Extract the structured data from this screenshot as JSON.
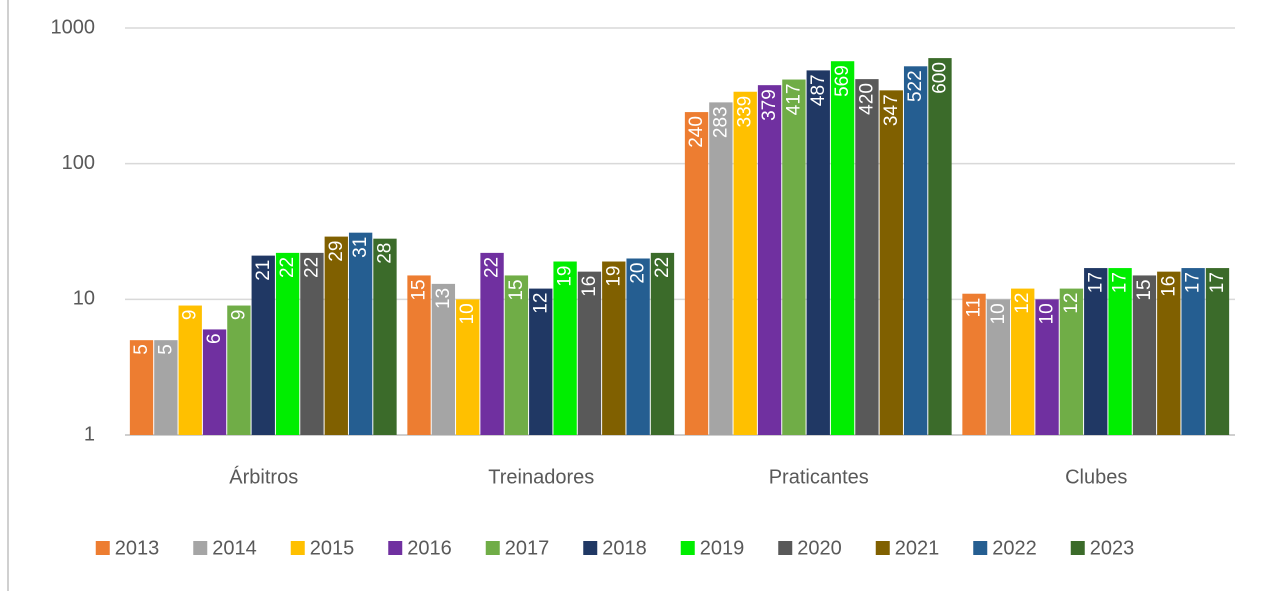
{
  "chart_data": {
    "type": "bar",
    "categories": [
      "Árbitros",
      "Treinadores",
      "Praticantes",
      "Clubes"
    ],
    "series": [
      {
        "name": "2013",
        "color": "#ed7d31",
        "values": [
          5,
          15,
          240,
          11
        ]
      },
      {
        "name": "2014",
        "color": "#a5a5a5",
        "values": [
          5,
          13,
          283,
          10
        ]
      },
      {
        "name": "2015",
        "color": "#ffc000",
        "values": [
          9,
          10,
          339,
          12
        ]
      },
      {
        "name": "2016",
        "color": "#7030a0",
        "values": [
          6,
          22,
          379,
          10
        ]
      },
      {
        "name": "2017",
        "color": "#70ad47",
        "values": [
          9,
          15,
          417,
          12
        ]
      },
      {
        "name": "2018",
        "color": "#203864",
        "values": [
          21,
          12,
          487,
          17
        ]
      },
      {
        "name": "2019",
        "color": "#00ee00",
        "values": [
          22,
          19,
          569,
          17
        ]
      },
      {
        "name": "2020",
        "color": "#595959",
        "values": [
          22,
          16,
          420,
          15
        ]
      },
      {
        "name": "2021",
        "color": "#806000",
        "values": [
          29,
          19,
          347,
          16
        ]
      },
      {
        "name": "2022",
        "color": "#255e91",
        "values": [
          31,
          20,
          522,
          17
        ]
      },
      {
        "name": "2023",
        "color": "#3b6b2a",
        "values": [
          28,
          22,
          600,
          17
        ]
      }
    ],
    "ylim": [
      1,
      1000
    ],
    "yticks": [
      1,
      10,
      100,
      1000
    ],
    "log_scale": true,
    "grid": true,
    "legend": "bottom"
  }
}
